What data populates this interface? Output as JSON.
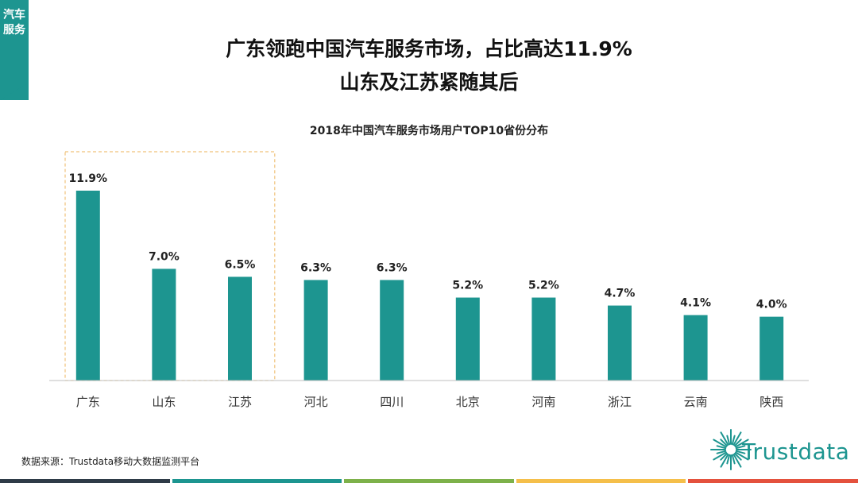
{
  "side_tab": {
    "label": "汽车服务"
  },
  "headline": {
    "line1": "广东领跑中国汽车服务市场，占比高达11.9%",
    "line2": "山东及江苏紧随其后"
  },
  "chart_data": {
    "type": "bar",
    "title": "2018年中国汽车服务市场用户TOP10省份分布",
    "categories": [
      "广东",
      "山东",
      "江苏",
      "河北",
      "四川",
      "北京",
      "河南",
      "浙江",
      "云南",
      "陕西"
    ],
    "values": [
      11.9,
      7.0,
      6.5,
      6.3,
      6.3,
      5.2,
      5.2,
      4.7,
      4.1,
      4.0
    ],
    "value_labels": [
      "11.9%",
      "7.0%",
      "6.5%",
      "6.3%",
      "6.3%",
      "5.2%",
      "5.2%",
      "4.7%",
      "4.1%",
      "4.0%"
    ],
    "ylim": [
      0,
      12
    ],
    "grid": false,
    "bar_color": "#1d9590",
    "highlight": {
      "categories": [
        "广东",
        "山东",
        "江苏"
      ],
      "style": "dashed-box",
      "color": "#f0c27a"
    }
  },
  "footer": {
    "source": "数据来源：Trustdata移动大数据监测平台",
    "logo_text": "Trustdata",
    "stripe_colors": [
      "#2e3b47",
      "#1d9590",
      "#7db14a",
      "#f5bf4a",
      "#e4513d"
    ]
  }
}
